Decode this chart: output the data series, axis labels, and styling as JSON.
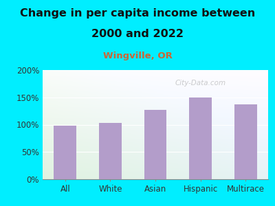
{
  "title_line1": "Change in per capita income between",
  "title_line2": "2000 and 2022",
  "subtitle": "Wingville, OR",
  "categories": [
    "All",
    "White",
    "Asian",
    "Hispanic",
    "Multirace"
  ],
  "values": [
    98,
    103,
    127,
    150,
    137
  ],
  "bar_color": "#b39dca",
  "title_fontsize": 11.5,
  "subtitle_fontsize": 9.5,
  "subtitle_color": "#cc6633",
  "tick_label_fontsize": 8.5,
  "ylim": [
    0,
    200
  ],
  "yticks": [
    0,
    50,
    100,
    150,
    200
  ],
  "ytick_labels": [
    "0%",
    "50%",
    "100%",
    "150%",
    "200%"
  ],
  "background_outer": "#00eeff",
  "watermark": "City-Data.com",
  "watermark_color": "#aaaaaa"
}
